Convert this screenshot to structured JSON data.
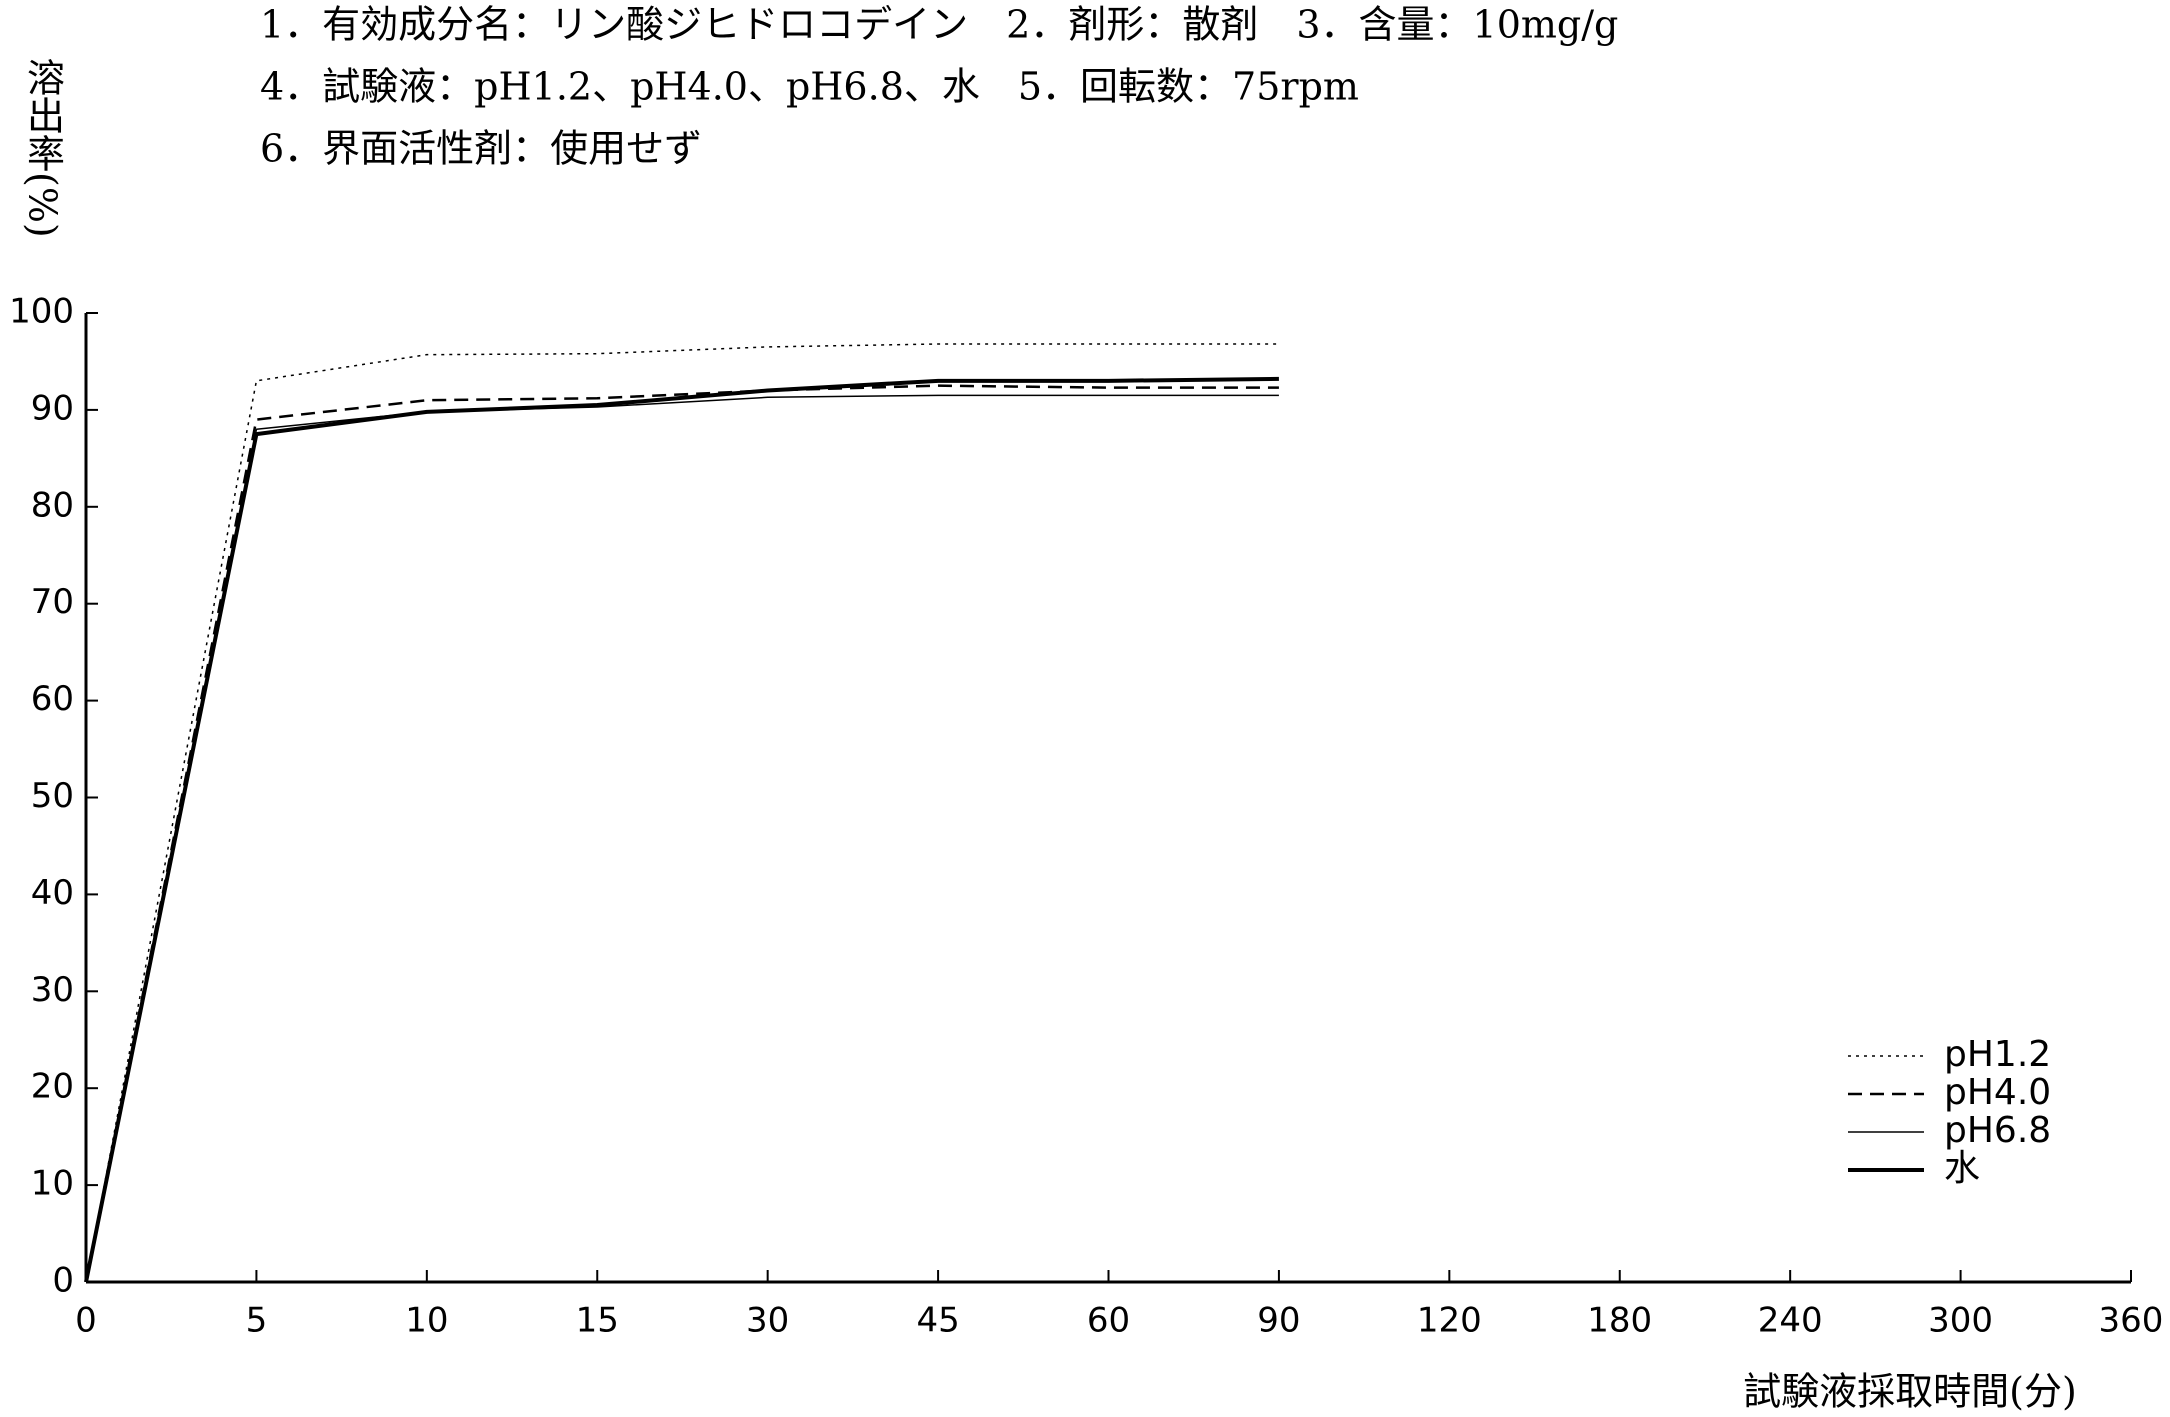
{
  "chart_data": {
    "type": "line",
    "title_lines": [
      "1．有効成分名：リン酸ジヒドロコデイン　2．剤形：散剤　3．含量：10mg/g",
      "4．試験液：pH1.2、pH4.0、pH6.8、水　5．回転数：75rpm",
      "6．界面活性剤：使用せず"
    ],
    "y_label": "溶出率(%)",
    "x_label": "試験液採取時間(分)",
    "categories": [
      "0",
      "5",
      "10",
      "15",
      "30",
      "45",
      "60",
      "90",
      "120",
      "180",
      "240",
      "300",
      "360"
    ],
    "series": [
      {
        "name": "pH1.2",
        "color": "#000000",
        "linestyle": "dotted",
        "line_width": 1.5,
        "values": [
          0,
          93,
          95.7,
          95.8,
          96.5,
          96.8,
          96.8,
          96.8,
          null,
          null,
          null,
          null,
          null
        ]
      },
      {
        "name": "pH4.0",
        "color": "#000000",
        "linestyle": "dashed",
        "line_width": 2.5,
        "values": [
          0,
          89,
          91,
          91.2,
          92,
          92.5,
          92.3,
          92.3,
          null,
          null,
          null,
          null,
          null
        ]
      },
      {
        "name": "pH6.8",
        "color": "#000000",
        "linestyle": "solid",
        "line_width": 1.5,
        "values": [
          0,
          88,
          89.8,
          90.3,
          91.3,
          91.5,
          91.5,
          91.5,
          null,
          null,
          null,
          null,
          null
        ]
      },
      {
        "name": "水",
        "color": "#000000",
        "linestyle": "solid",
        "line_width": 4,
        "values": [
          0,
          87.5,
          89.8,
          90.5,
          92,
          93,
          93,
          93.2,
          null,
          null,
          null,
          null,
          null
        ]
      }
    ],
    "ylim": [
      0,
      100
    ],
    "yticks": [
      0,
      10,
      20,
      30,
      40,
      50,
      60,
      70,
      80,
      90,
      100
    ],
    "grid": false,
    "legend": "lower right"
  }
}
